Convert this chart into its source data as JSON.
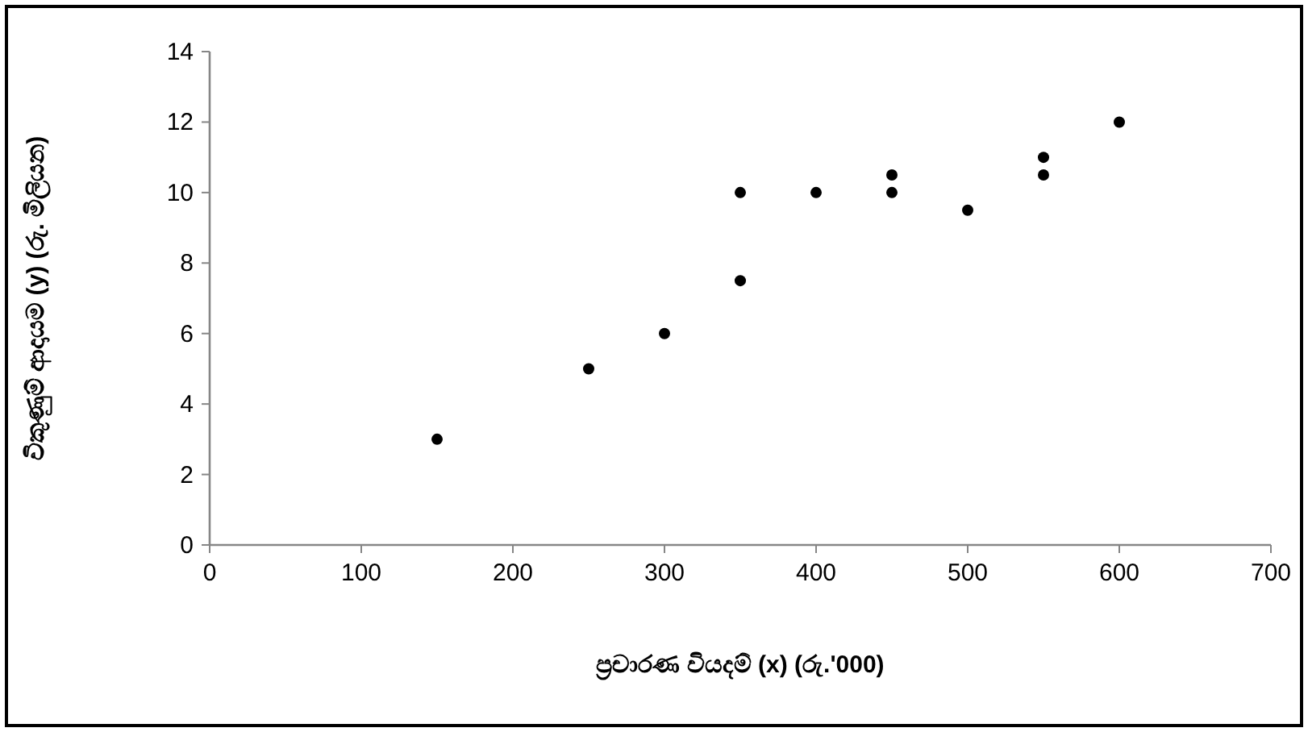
{
  "chart_data": {
    "type": "scatter",
    "xlabel": "ප්‍රචාරණ වියදම් (x) (රු.'000)",
    "ylabel": "විකුණුම් ආදායම (y) (රු. මිලියන)",
    "x": [
      150,
      250,
      300,
      350,
      350,
      400,
      450,
      450,
      500,
      550,
      550,
      600
    ],
    "series": [
      {
        "color": "#000000",
        "values": [
          3,
          5,
          6,
          7.5,
          10,
          10,
          10.5,
          10,
          9.5,
          11,
          10.5,
          12
        ]
      }
    ],
    "xlim": [
      0,
      700
    ],
    "xticks": [
      0,
      100,
      200,
      300,
      400,
      500,
      600,
      700
    ],
    "ylim": [
      0,
      14
    ],
    "yticks": [
      0,
      2,
      4,
      6,
      8,
      10,
      12,
      14
    ],
    "marker": "circle",
    "grid": false
  }
}
